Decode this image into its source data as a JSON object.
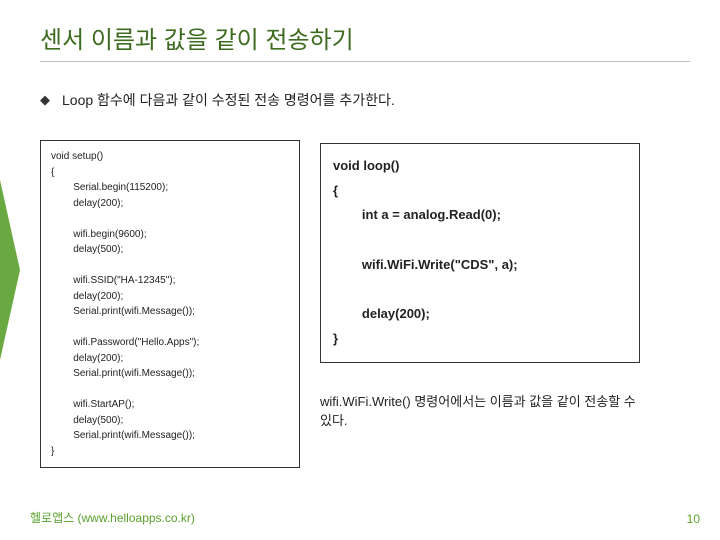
{
  "title": "센서 이름과 값을 같이 전송하기",
  "bullet_marker": "◆",
  "bullet": "Loop 함수에 다음과 같이 수정된 전송 명령어를 추가한다.",
  "left_code": "void setup()\n{\n        Serial.begin(115200);\n        delay(200);\n\n        wifi.begin(9600);\n        delay(500);\n\n        wifi.SSID(\"HA-12345\");\n        delay(200);\n        Serial.print(wifi.Message());\n\n        wifi.Password(\"Hello.Apps\");\n        delay(200);\n        Serial.print(wifi.Message());\n\n        wifi.StartAP();\n        delay(500);\n        Serial.print(wifi.Message());\n}",
  "right_code": "void loop()\n{\n        int a = analog.Read(0);\n\n        wifi.WiFi.Write(\"CDS\", a);\n\n        delay(200);\n}",
  "caption": "wifi.WiFi.Write() 명령어에서는 이름과 값을 같이 전송할 수 있다.",
  "footer": "헬로앱스 (www.helloapps.co.kr)",
  "page_number": "10",
  "colors": {
    "accent": "#5aa02c",
    "title": "#3d6b1f",
    "rule": "#bfbfbf",
    "text": "#222222",
    "box_border": "#333333",
    "background": "#ffffff"
  },
  "layout": {
    "slide_w": 720,
    "slide_h": 540,
    "title_fontsize": 24,
    "body_fontsize": 14,
    "left_code_fontsize": 10,
    "right_code_fontsize": 13,
    "left_box_w": 260,
    "right_box_w": 320
  }
}
